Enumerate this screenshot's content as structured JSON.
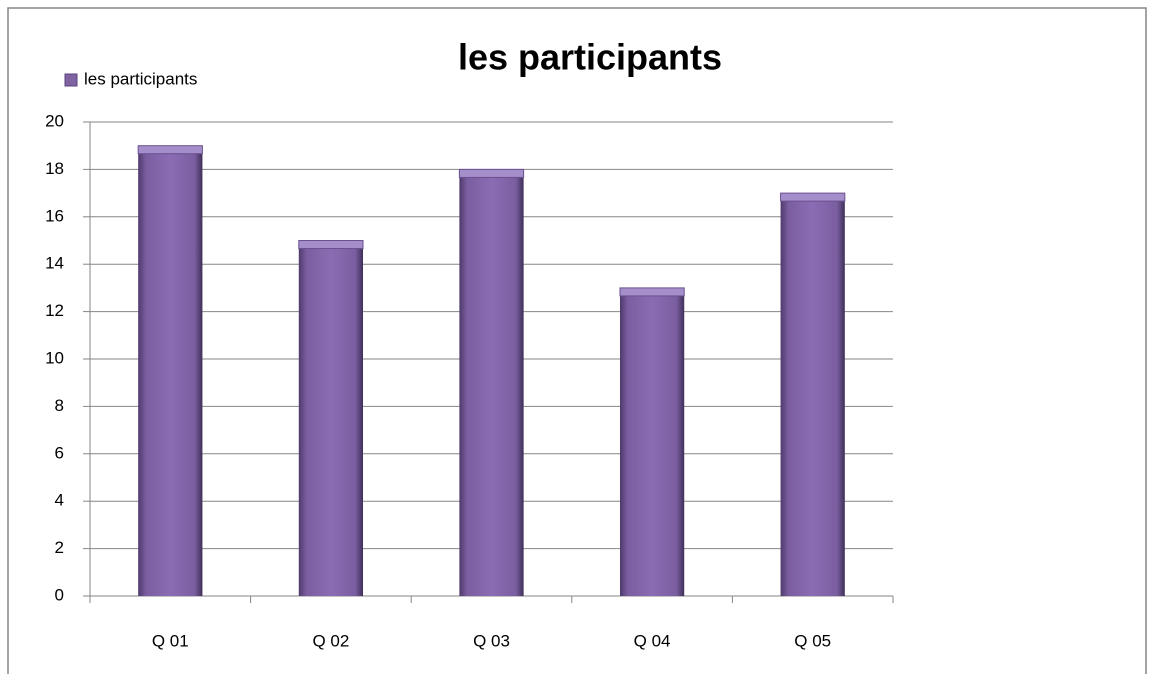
{
  "chart_data": {
    "type": "bar",
    "title": "les participants",
    "categories": [
      "Q 01",
      "Q 02",
      "Q 03",
      "Q 04",
      "Q 05"
    ],
    "series": [
      {
        "name": "les participants",
        "color": "#8064a2",
        "values": [
          19,
          15,
          18,
          13,
          17
        ]
      }
    ],
    "ylim": [
      0,
      20
    ],
    "yticks": [
      0,
      2,
      4,
      6,
      8,
      10,
      12,
      14,
      16,
      18,
      20
    ],
    "grid": true,
    "legend": "top-left"
  }
}
